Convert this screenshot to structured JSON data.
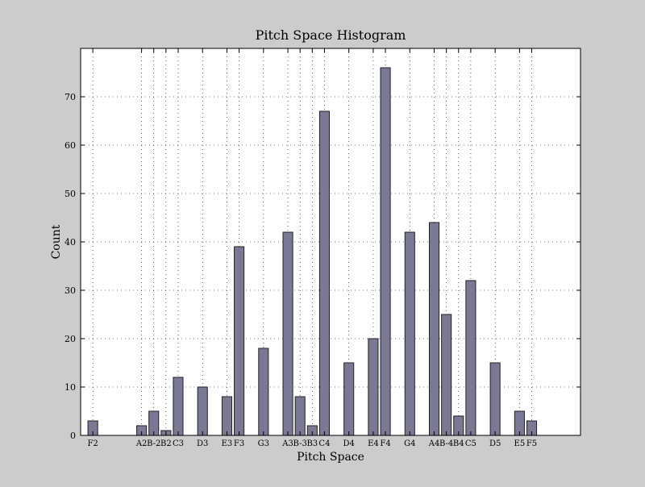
{
  "chart_data": {
    "type": "bar",
    "title": "Pitch Space Histogram",
    "xlabel": "Pitch Space",
    "ylabel": "Count",
    "x_axis_range": [
      40,
      81
    ],
    "ylim": [
      0,
      80
    ],
    "y_ticks": [
      0,
      10,
      20,
      30,
      40,
      50,
      60,
      70
    ],
    "grid": true,
    "bar_color": "#7b7894",
    "bar_edge_color": "#222222",
    "background_color": "#cccccc",
    "plot_background_color": "#ffffff",
    "bars": [
      {
        "label": "F2",
        "pitch": 41,
        "value": 3
      },
      {
        "label": "A2",
        "pitch": 45,
        "value": 2
      },
      {
        "label": "B-2",
        "pitch": 46,
        "value": 5
      },
      {
        "label": "B2",
        "pitch": 47,
        "value": 1
      },
      {
        "label": "C3",
        "pitch": 48,
        "value": 12
      },
      {
        "label": "D3",
        "pitch": 50,
        "value": 10
      },
      {
        "label": "E3",
        "pitch": 52,
        "value": 8
      },
      {
        "label": "F3",
        "pitch": 53,
        "value": 39
      },
      {
        "label": "G3",
        "pitch": 55,
        "value": 18
      },
      {
        "label": "A3",
        "pitch": 57,
        "value": 42
      },
      {
        "label": "B-3",
        "pitch": 58,
        "value": 8
      },
      {
        "label": "B3",
        "pitch": 59,
        "value": 2
      },
      {
        "label": "C4",
        "pitch": 60,
        "value": 67
      },
      {
        "label": "D4",
        "pitch": 62,
        "value": 15
      },
      {
        "label": "E4",
        "pitch": 64,
        "value": 20
      },
      {
        "label": "F4",
        "pitch": 65,
        "value": 76
      },
      {
        "label": "G4",
        "pitch": 67,
        "value": 42
      },
      {
        "label": "A4",
        "pitch": 69,
        "value": 44
      },
      {
        "label": "B-4",
        "pitch": 70,
        "value": 25
      },
      {
        "label": "B4",
        "pitch": 71,
        "value": 4
      },
      {
        "label": "C5",
        "pitch": 72,
        "value": 32
      },
      {
        "label": "D5",
        "pitch": 74,
        "value": 15
      },
      {
        "label": "E5",
        "pitch": 76,
        "value": 5
      },
      {
        "label": "F5",
        "pitch": 77,
        "value": 3
      }
    ]
  }
}
